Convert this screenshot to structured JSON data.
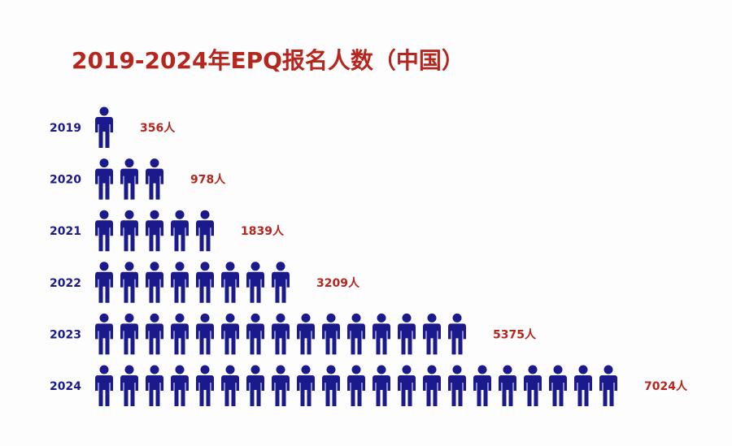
{
  "chart_data": {
    "type": "pictogram",
    "title": "2019-2024年EPQ报名人数（中国）",
    "categories": [
      "2019",
      "2020",
      "2021",
      "2022",
      "2023",
      "2024"
    ],
    "values": [
      356,
      978,
      1839,
      3209,
      5375,
      7024
    ],
    "value_labels": [
      "356人",
      "978人",
      "1839人",
      "3209人",
      "5375人",
      "7024人"
    ],
    "icons": [
      1,
      3,
      5,
      8,
      15,
      21
    ],
    "color": "#1a1a8c",
    "label_color": "#b5261e"
  }
}
